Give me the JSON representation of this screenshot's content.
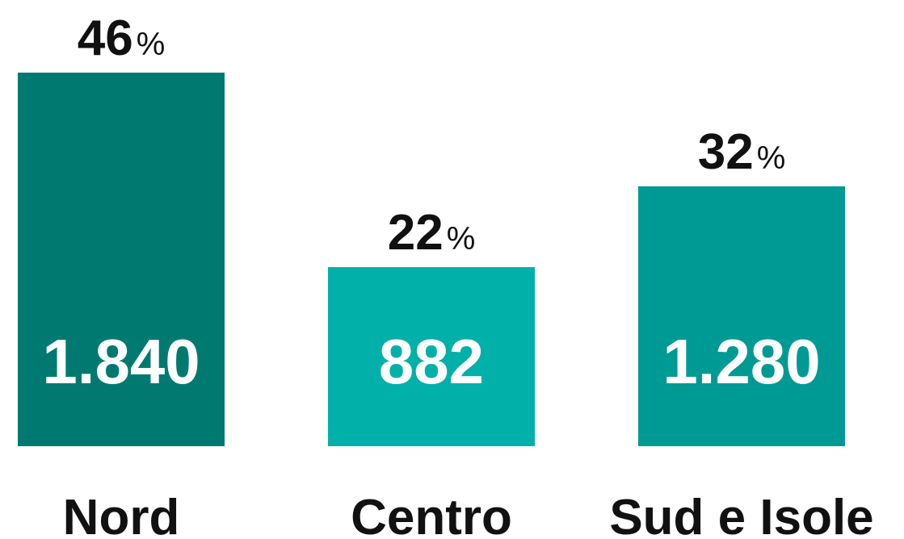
{
  "chart_data": {
    "type": "bar",
    "categories": [
      "Nord",
      "Centro",
      "Sud e Isole"
    ],
    "values": [
      1840,
      882,
      1280
    ],
    "value_labels": [
      "1.840",
      "882",
      "1.280"
    ],
    "percentages": [
      46,
      22,
      32
    ],
    "percentage_labels": [
      "46%",
      "22%",
      "32%"
    ],
    "colors": [
      "#007a70",
      "#00b0a9",
      "#009a94"
    ],
    "ylim": [
      0,
      1840
    ]
  }
}
